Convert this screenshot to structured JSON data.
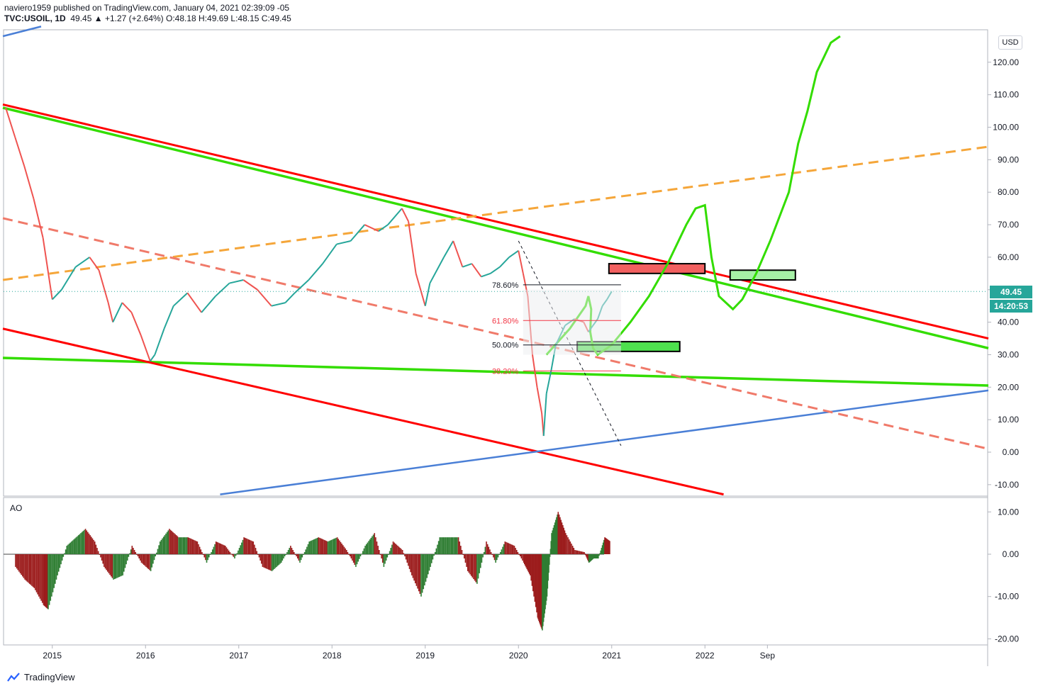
{
  "header": {
    "publish_line": "naviero1959 published on TradingView.com, January 04, 2021 02:39:09 -05",
    "symbol": "TVC:USOIL",
    "interval": "1D",
    "last": "49.45",
    "change": "▲ +1.27 (+2.64%)",
    "ohlc": "O:48.18 H:49.69 L:48.15 C:49.45"
  },
  "currency": "USD",
  "price_badge": "49.45",
  "countdown_badge": "14:20:53",
  "indicator_label": "AO",
  "footer_brand": "TradingView",
  "colors": {
    "up": "#26a69a",
    "down": "#ef5350",
    "ao_up": "#2e7d32",
    "ao_down": "#9c1c1c",
    "channel_red": "#ff0000",
    "channel_green": "#33dd00",
    "trend_blue": "#4a7fd6",
    "orange_dashed": "#f5a63a",
    "salmon_dashed": "#f07a6a",
    "supply_zone": "#f26060",
    "demand_zone": "#4ee04e"
  },
  "chart_data": [
    {
      "type": "line",
      "title": "",
      "x_ticks": [
        "2015",
        "2016",
        "2017",
        "2018",
        "2019",
        "2020",
        "2021",
        "2022",
        "Sep"
      ],
      "y_ticks": [
        "120.00",
        "110.00",
        "100.00",
        "90.00",
        "80.00",
        "70.00",
        "60.00",
        "50.00",
        "40.00",
        "30.00",
        "20.00",
        "10.00",
        "0.00",
        "-10.00"
      ],
      "ylim": [
        -13,
        128
      ],
      "grid": false,
      "series": [
        {
          "values_xy": [
            [
              2014.5,
              106
            ],
            [
              2014.6,
              97
            ],
            [
              2014.7,
              88
            ],
            [
              2014.8,
              78
            ],
            [
              2014.9,
              66
            ],
            [
              2015.0,
              47
            ],
            [
              2015.1,
              50
            ],
            [
              2015.25,
              57
            ],
            [
              2015.4,
              60
            ],
            [
              2015.5,
              56
            ],
            [
              2015.6,
              46
            ],
            [
              2015.65,
              40
            ],
            [
              2015.75,
              46
            ],
            [
              2015.85,
              43
            ],
            [
              2015.95,
              36
            ],
            [
              2016.05,
              28
            ],
            [
              2016.1,
              30
            ],
            [
              2016.2,
              38
            ],
            [
              2016.3,
              45
            ],
            [
              2016.45,
              49
            ],
            [
              2016.6,
              43
            ],
            [
              2016.75,
              48
            ],
            [
              2016.9,
              52
            ],
            [
              2017.05,
              53
            ],
            [
              2017.2,
              50
            ],
            [
              2017.35,
              45
            ],
            [
              2017.5,
              46
            ],
            [
              2017.6,
              49
            ],
            [
              2017.75,
              53
            ],
            [
              2017.9,
              58
            ],
            [
              2018.05,
              64
            ],
            [
              2018.2,
              65
            ],
            [
              2018.35,
              70
            ],
            [
              2018.5,
              68
            ],
            [
              2018.6,
              70
            ],
            [
              2018.75,
              75
            ],
            [
              2018.82,
              71
            ],
            [
              2018.9,
              55
            ],
            [
              2019.0,
              45
            ],
            [
              2019.05,
              52
            ],
            [
              2019.2,
              60
            ],
            [
              2019.3,
              65
            ],
            [
              2019.4,
              57
            ],
            [
              2019.5,
              58
            ],
            [
              2019.6,
              54
            ],
            [
              2019.7,
              55
            ],
            [
              2019.8,
              57
            ],
            [
              2019.9,
              60
            ],
            [
              2020.0,
              62
            ],
            [
              2020.05,
              55
            ],
            [
              2020.1,
              48
            ],
            [
              2020.15,
              30
            ],
            [
              2020.2,
              20
            ],
            [
              2020.25,
              12
            ],
            [
              2020.27,
              5
            ],
            [
              2020.3,
              18
            ],
            [
              2020.35,
              25
            ],
            [
              2020.4,
              33
            ],
            [
              2020.5,
              39
            ],
            [
              2020.6,
              41
            ],
            [
              2020.7,
              40
            ],
            [
              2020.75,
              37
            ],
            [
              2020.8,
              39
            ],
            [
              2020.85,
              41
            ],
            [
              2020.9,
              45
            ],
            [
              2020.95,
              47
            ],
            [
              2021.0,
              49.45
            ]
          ]
        }
      ]
    },
    {
      "type": "bar",
      "title": "AO",
      "y_ticks": [
        "10.00",
        "0.00",
        "-10.00",
        "-20.00"
      ],
      "ylim": [
        -21,
        12
      ],
      "values_xy": [
        [
          2014.6,
          -3
        ],
        [
          2014.7,
          -6
        ],
        [
          2014.8,
          -8
        ],
        [
          2014.9,
          -12
        ],
        [
          2014.95,
          -13
        ],
        [
          2015.05,
          -5
        ],
        [
          2015.15,
          2
        ],
        [
          2015.25,
          4
        ],
        [
          2015.35,
          6
        ],
        [
          2015.45,
          3
        ],
        [
          2015.55,
          -3
        ],
        [
          2015.65,
          -6
        ],
        [
          2015.75,
          -5
        ],
        [
          2015.85,
          2
        ],
        [
          2015.95,
          -2
        ],
        [
          2016.05,
          -4
        ],
        [
          2016.15,
          3
        ],
        [
          2016.25,
          6
        ],
        [
          2016.35,
          4
        ],
        [
          2016.45,
          4
        ],
        [
          2016.55,
          3
        ],
        [
          2016.65,
          -2
        ],
        [
          2016.75,
          3
        ],
        [
          2016.85,
          2
        ],
        [
          2016.95,
          -1
        ],
        [
          2017.05,
          4
        ],
        [
          2017.15,
          3
        ],
        [
          2017.25,
          -3
        ],
        [
          2017.35,
          -4
        ],
        [
          2017.45,
          -2
        ],
        [
          2017.55,
          2
        ],
        [
          2017.65,
          -2
        ],
        [
          2017.75,
          3
        ],
        [
          2017.85,
          4
        ],
        [
          2017.95,
          3
        ],
        [
          2018.05,
          4
        ],
        [
          2018.15,
          1
        ],
        [
          2018.25,
          -3
        ],
        [
          2018.35,
          2
        ],
        [
          2018.45,
          5
        ],
        [
          2018.55,
          -3
        ],
        [
          2018.65,
          3
        ],
        [
          2018.75,
          1
        ],
        [
          2018.85,
          -5
        ],
        [
          2018.95,
          -10
        ],
        [
          2019.05,
          -3
        ],
        [
          2019.15,
          4
        ],
        [
          2019.25,
          4
        ],
        [
          2019.35,
          4
        ],
        [
          2019.45,
          -4
        ],
        [
          2019.55,
          -7
        ],
        [
          2019.65,
          3
        ],
        [
          2019.75,
          -2
        ],
        [
          2019.85,
          3
        ],
        [
          2019.95,
          2
        ],
        [
          2020.05,
          -2
        ],
        [
          2020.12,
          -5
        ],
        [
          2020.2,
          -15
        ],
        [
          2020.25,
          -18
        ],
        [
          2020.3,
          -10
        ],
        [
          2020.35,
          5
        ],
        [
          2020.42,
          10
        ],
        [
          2020.5,
          5
        ],
        [
          2020.6,
          1
        ],
        [
          2020.7,
          0.5
        ],
        [
          2020.75,
          -2
        ],
        [
          2020.8,
          -1
        ],
        [
          2020.85,
          -1
        ],
        [
          2020.92,
          4
        ],
        [
          2020.98,
          3
        ]
      ]
    }
  ]
}
